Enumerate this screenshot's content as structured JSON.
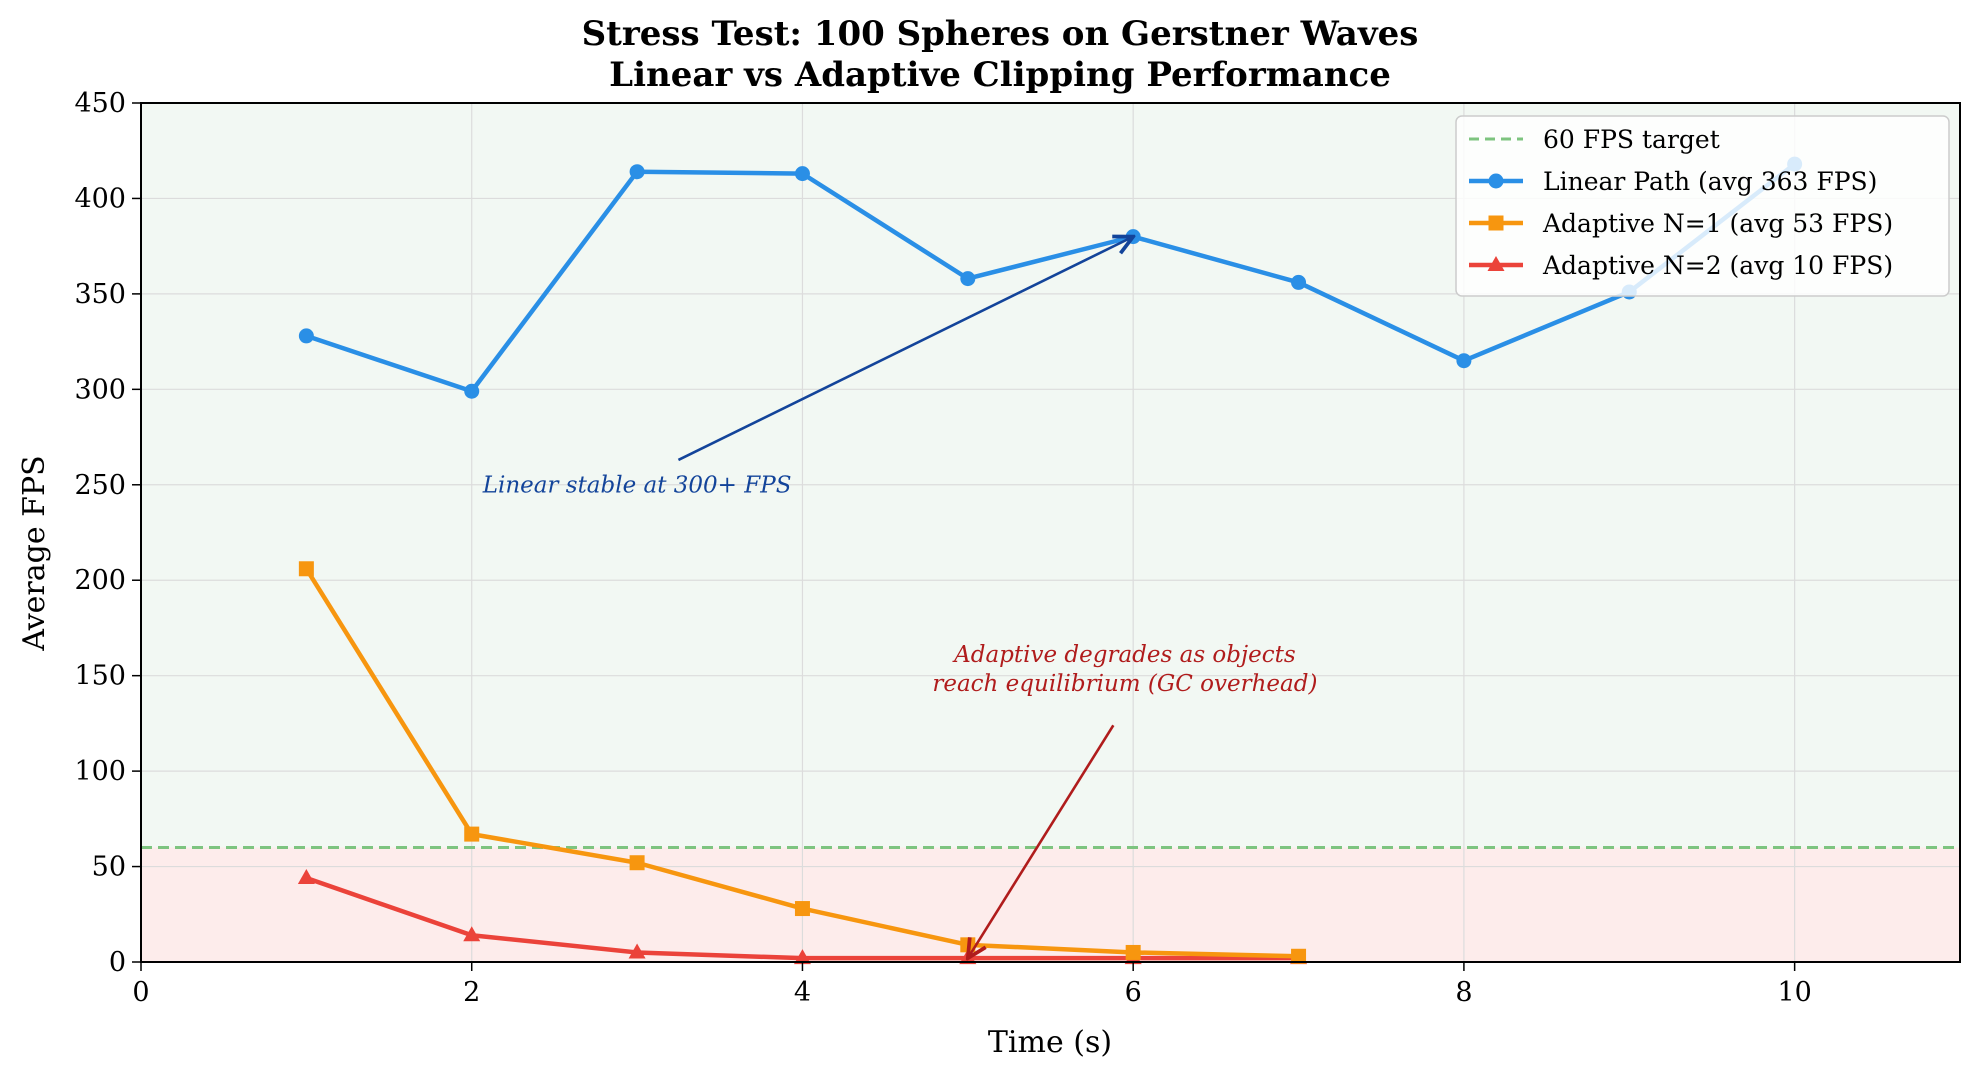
{
  "chart_data": {
    "type": "line",
    "title": "Stress Test: 100 Spheres on Gerstner Waves",
    "subtitle": "Linear vs Adaptive Clipping Performance",
    "xlabel": "Time (s)",
    "ylabel": "Average FPS",
    "xlim": [
      0,
      11
    ],
    "ylim": [
      0,
      450
    ],
    "xticks": [
      0,
      2,
      4,
      6,
      8,
      10
    ],
    "yticks": [
      0,
      50,
      100,
      150,
      200,
      250,
      300,
      350,
      400,
      450
    ],
    "grid": true,
    "legend_position": "top-right",
    "bands": [
      {
        "from": 60,
        "to": 450,
        "color": "#f2f8f3"
      },
      {
        "from": 0,
        "to": 60,
        "color": "#fdeceb"
      }
    ],
    "reference_lines": [
      {
        "name": "60 FPS target",
        "y": 60,
        "color": "#7dc47f",
        "style": "dashed"
      }
    ],
    "series": [
      {
        "name": "Linear Path (avg 363 FPS)",
        "marker": "circle",
        "color": "#2a8fe6",
        "x": [
          1,
          2,
          3,
          4,
          5,
          6,
          7,
          8,
          9,
          10
        ],
        "y": [
          328,
          299,
          414,
          413,
          358,
          380,
          356,
          315,
          351,
          418
        ]
      },
      {
        "name": "Adaptive N=1 (avg 53 FPS)",
        "marker": "square",
        "color": "#f7960f",
        "x": [
          1,
          2,
          3,
          4,
          5,
          6,
          7
        ],
        "y": [
          206,
          67,
          52,
          28,
          9,
          5,
          3
        ]
      },
      {
        "name": "Adaptive N=2 (avg 10 FPS)",
        "marker": "triangle",
        "color": "#eb433a",
        "x": [
          1,
          2,
          3,
          4,
          5,
          6,
          7
        ],
        "y": [
          44,
          14,
          5,
          2,
          2,
          2,
          2
        ]
      }
    ],
    "annotations": [
      {
        "text_lines": [
          "Linear stable at 300+ FPS"
        ],
        "color": "#13449a",
        "text_at": [
          3.0,
          246
        ],
        "text_anchor": "middle",
        "arrow_from": [
          3.25,
          263
        ],
        "arrow_to": [
          6.0,
          380
        ]
      },
      {
        "text_lines": [
          "Adaptive degrades as objects",
          "reach equilibrium (GC overhead)"
        ],
        "color": "#b01c1c",
        "text_at": [
          5.95,
          142
        ],
        "text_anchor": "middle",
        "arrow_from": [
          5.88,
          124
        ],
        "arrow_to": [
          5.0,
          2
        ]
      }
    ]
  }
}
